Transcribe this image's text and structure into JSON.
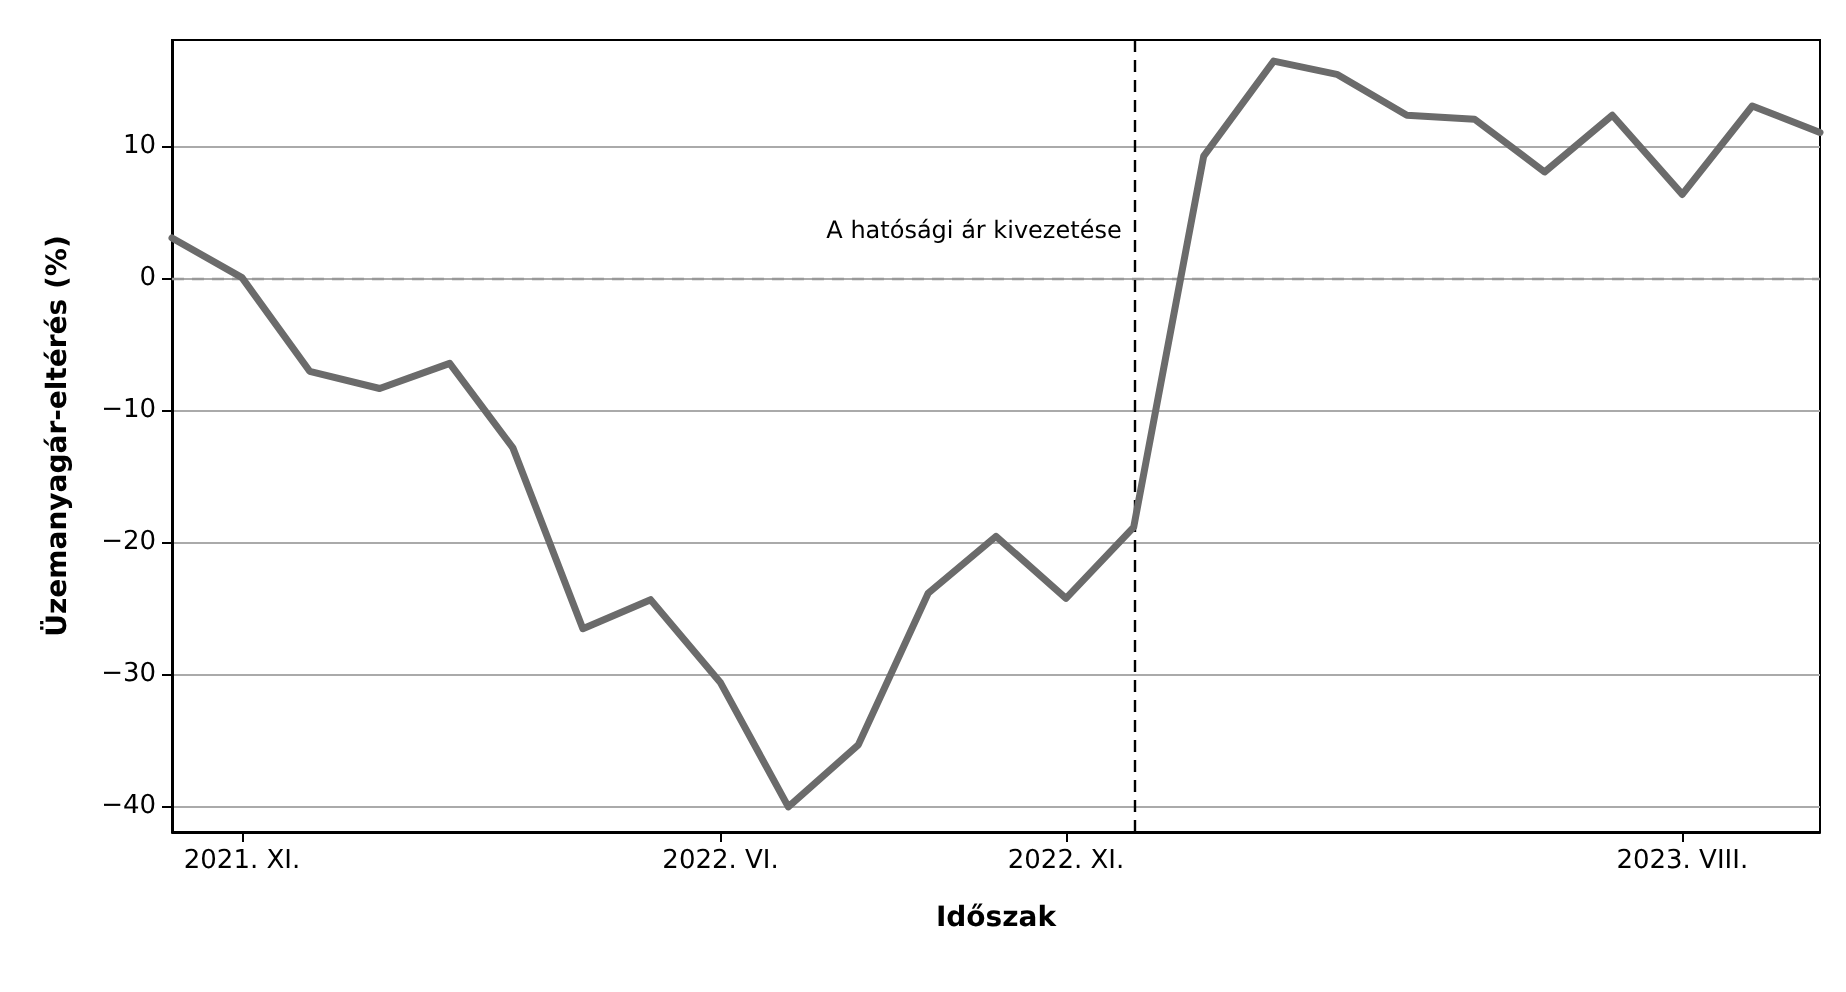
{
  "chart_data": {
    "type": "line",
    "xlabel": "Időszak",
    "ylabel": "Üzemanyagár-eltérés (%)",
    "x": [
      "2021-10",
      "2021-11",
      "2021-12",
      "2022-01",
      "2022-02",
      "2022-03",
      "2022-04",
      "2022-05",
      "2022-06",
      "2022-07",
      "2022-08",
      "2022-09",
      "2022-10",
      "2022-11",
      "2022-12",
      "2023-01",
      "2023-02",
      "2023-03",
      "2023-04",
      "2023-05",
      "2023-06",
      "2023-07",
      "2023-08",
      "2023-09",
      "2023-10"
    ],
    "series": [
      {
        "color": "#6b6b6b",
        "values": [
          3,
          0,
          -7.1,
          -8.4,
          -6.5,
          -12.9,
          -26.6,
          -24.4,
          -30.7,
          -40.1,
          -35.4,
          -23.9,
          -19.6,
          -24.3,
          -18.9,
          9.2,
          16.4,
          15.4,
          12.3,
          12,
          8,
          12.3,
          6.3,
          13,
          11
        ]
      }
    ],
    "xlim": [
      "2021-10",
      "2023-10"
    ],
    "xticks": [
      {
        "value": "2021-11",
        "label": "2021. XI."
      },
      {
        "value": "2022-06",
        "label": "2022. VI."
      },
      {
        "value": "2022-11",
        "label": "2022. XI."
      },
      {
        "value": "2023-08",
        "label": "2023. VIII."
      }
    ],
    "ylim": [
      -42,
      18
    ],
    "yticks": [
      -40,
      -30,
      -20,
      -10,
      0,
      10
    ],
    "grid": "y",
    "marker": "none",
    "line_style": "solid",
    "ref_lines": [
      {
        "axis": "y",
        "value": 0,
        "color": "#999999",
        "line_style": "dashed"
      },
      {
        "axis": "x",
        "value": "2022-12",
        "label": "A hatósági ár kivezetése",
        "color": "#000000",
        "line_style": "dashed"
      }
    ]
  }
}
